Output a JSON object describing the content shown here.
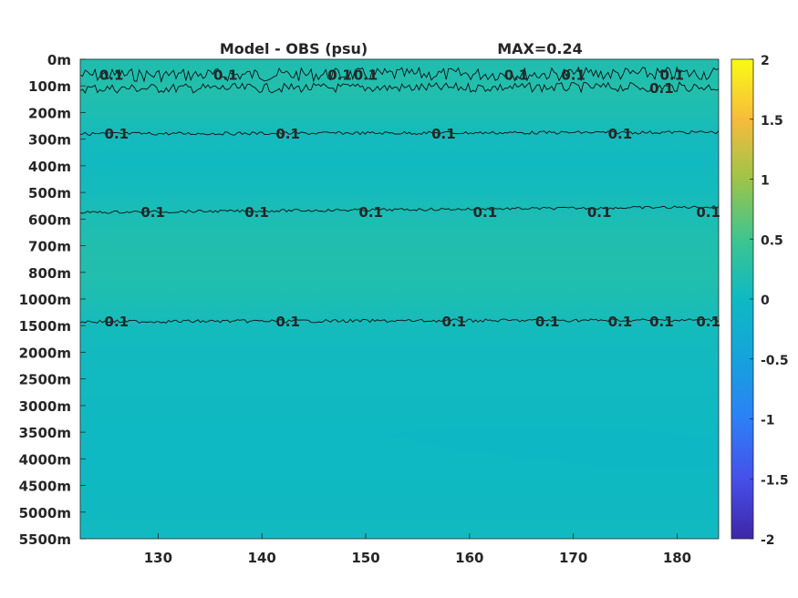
{
  "chart_data": {
    "type": "heatmap",
    "title": "Model - OBS (psu)",
    "annotation": "MAX=0.24",
    "xlim": [
      122.5,
      184
    ],
    "x_ticks": [
      130,
      140,
      150,
      160,
      170,
      180
    ],
    "y_ticks": [
      "0m",
      "100m",
      "200m",
      "300m",
      "400m",
      "500m",
      "600m",
      "700m",
      "800m",
      "1000m",
      "1500m",
      "2000m",
      "2500m",
      "3000m",
      "3500m",
      "4000m",
      "4500m",
      "5000m",
      "5500m"
    ],
    "colorbar": {
      "colormap": "parula",
      "clim": [
        -2,
        2
      ],
      "ticks": [
        2,
        1.5,
        1,
        0.5,
        0,
        -0.5,
        -1,
        -1.5,
        -2
      ],
      "tick_labels": [
        "2",
        "1.5",
        "1",
        "0.5",
        "0",
        "-0.5",
        "-1",
        "-1.5",
        "-2"
      ],
      "location": "right"
    },
    "field_bands": [
      {
        "depth": "0m",
        "value": 0.18
      },
      {
        "depth": "100m",
        "value": 0.22
      },
      {
        "depth": "200m",
        "value": 0.16
      },
      {
        "depth": "300m",
        "value": 0.06
      },
      {
        "depth": "400m",
        "value": 0.03
      },
      {
        "depth": "500m",
        "value": 0.07
      },
      {
        "depth": "600m",
        "value": 0.15
      },
      {
        "depth": "700m",
        "value": 0.2
      },
      {
        "depth": "800m",
        "value": 0.21
      },
      {
        "depth": "1000m",
        "value": 0.16
      },
      {
        "depth": "1500m",
        "value": 0.07
      },
      {
        "depth": "2000m",
        "value": 0.04
      },
      {
        "depth": "2500m",
        "value": 0.03
      },
      {
        "depth": "3000m",
        "value": 0.02
      },
      {
        "depth": "3500m",
        "value": 0.0
      },
      {
        "depth": "4000m",
        "value": -0.01
      },
      {
        "depth": "4500m",
        "value": 0.01
      },
      {
        "depth": "5000m",
        "value": 0.02
      },
      {
        "depth": "5500m",
        "value": 0.03
      }
    ],
    "contour_level": 0.1,
    "contour_label": "0.1",
    "contours": [
      {
        "depth_idx": 0.6,
        "amp": 0.25,
        "label_x": [
          125.5,
          136.5,
          147.5,
          150.0,
          164.5,
          170.0,
          179.5
        ]
      },
      {
        "depth_idx": 1.1,
        "amp": 0.18,
        "label_x": [
          178.5
        ]
      },
      {
        "depth_idx": 2.8,
        "amp": 0.06,
        "label_x": [
          126,
          142.5,
          157.5,
          174.5
        ]
      },
      {
        "depth_idx": 5.75,
        "amp": 0.05,
        "label_x": [
          129.5,
          139.5,
          150.5,
          161.5,
          172.5,
          183.0
        ]
      },
      {
        "depth_idx": 9.85,
        "amp": 0.06,
        "label_x": [
          126,
          142.5,
          158.5,
          167.5,
          174.5,
          178.5,
          183.0
        ]
      }
    ]
  }
}
